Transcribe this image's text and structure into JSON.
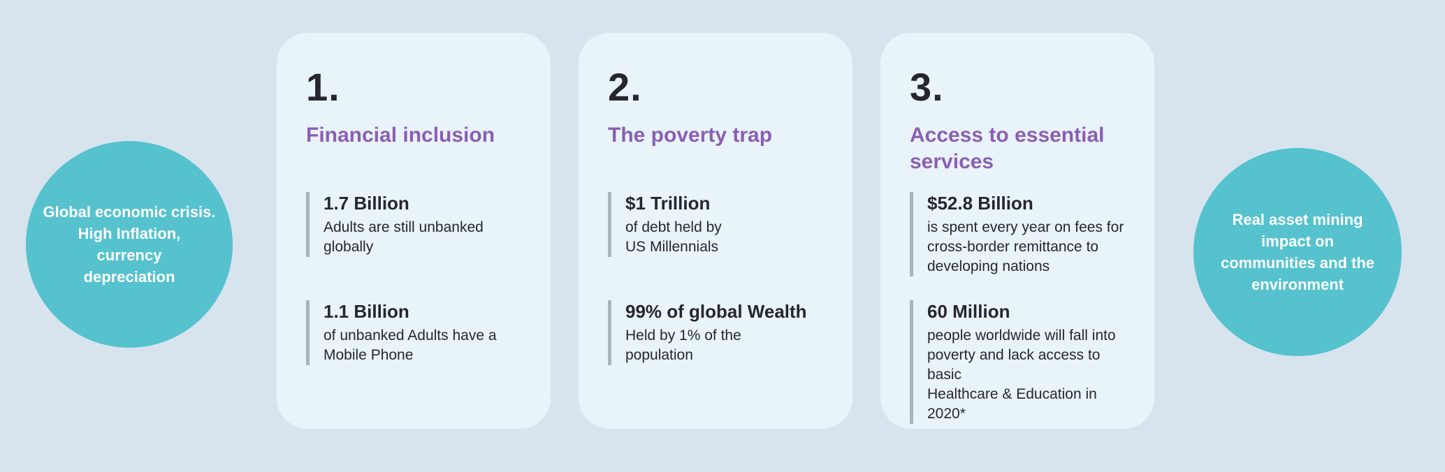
{
  "colors": {
    "background": "#d7e4ee",
    "card_background": "#e9f3fa",
    "circle_teal": "#55c2ce",
    "title_purple": "#8a5fb3",
    "text_dark": "#26262e",
    "stat_bar_grey": "#aab4bd",
    "circle_text_white": "#ffffff"
  },
  "left_circle": {
    "text": "Global economic crisis.\nHigh Inflation,\ncurrency\ndepreciation"
  },
  "right_circle": {
    "text": "Real asset  mining\nimpact on\ncommunities and the\nenvironment"
  },
  "cards": [
    {
      "number": "1.",
      "title": "Financial inclusion",
      "stats": [
        {
          "value": "1.7 Billion",
          "desc": "Adults are still unbanked\nglobally"
        },
        {
          "value": "1.1 Billion",
          "desc": "of unbanked Adults have a\nMobile Phone"
        }
      ]
    },
    {
      "number": "2.",
      "title": "The poverty trap",
      "stats": [
        {
          "value": "$1 Trillion",
          "desc": "of debt held by\nUS Millennials"
        },
        {
          "value": "99% of global Wealth",
          "desc": "Held by 1% of the\npopulation"
        }
      ]
    },
    {
      "number": "3.",
      "title": "Access to essential\nservices",
      "stats": [
        {
          "value": "$52.8 Billion",
          "desc": "is spent every year on fees for\ncross-border remittance to\ndeveloping nations"
        },
        {
          "value": "60 Million",
          "desc": "people worldwide will fall into\npoverty and lack access to basic\nHealthcare & Education in 2020*"
        }
      ]
    }
  ]
}
